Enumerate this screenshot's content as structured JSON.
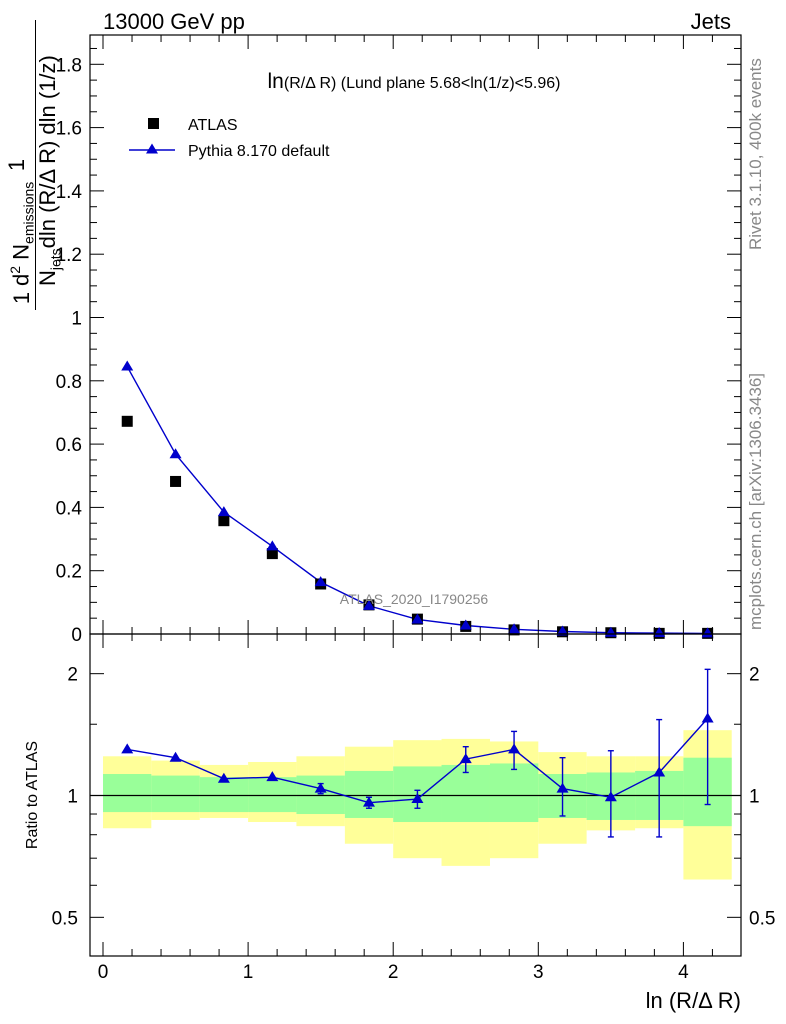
{
  "header": {
    "left": "13000 GeV pp",
    "right": "Jets"
  },
  "side": {
    "rivet": "Rivet 3.1.10,  400k events",
    "mcplots": "mcplots.cern.ch [arXiv:1306.3436]"
  },
  "watermark": "ATLAS_2020_I1790256",
  "colors": {
    "data": "#000000",
    "mc": "#0000cc",
    "band_inner": "#99ff99",
    "band_outer": "#ffff99"
  },
  "chart_data": [
    {
      "type": "scatter",
      "title": "ln(R/Δ R) (Lund plane 5.68<ln(1/z)<5.96)",
      "title_main": "ln",
      "title_rest": "(R/Δ R) (Lund plane 5.68<ln(1/z)<5.96)",
      "ylabel": {
        "frac_one": "1",
        "den_N": "N",
        "den_sub": "jets",
        "den_rest": "dln (R/Δ R) dln (1/z)",
        "num_d": "d",
        "num_sup": "2",
        "num_N": " N",
        "num_sub": "emissions"
      },
      "xlim": [
        -0.1,
        4.42
      ],
      "ylim": [
        0,
        1.9
      ],
      "yticks": [
        0,
        0.2,
        0.4,
        0.6,
        0.8,
        1,
        1.2,
        1.4,
        1.6,
        1.8
      ],
      "ytick_labels": [
        "0",
        "0.2",
        "0.4",
        "0.6",
        "0.8",
        "1",
        "1.2",
        "1.4",
        "1.6",
        "1.8"
      ],
      "legend": [
        {
          "label": "ATLAS",
          "marker": "square"
        },
        {
          "label": "Pythia 8.170 default",
          "marker": "triangle"
        }
      ],
      "x": [
        0.167,
        0.5,
        0.833,
        1.167,
        1.5,
        1.833,
        2.167,
        2.5,
        2.833,
        3.167,
        3.5,
        3.833,
        4.167
      ],
      "series": [
        {
          "name": "ATLAS",
          "values": [
            0.672,
            0.482,
            0.358,
            0.254,
            0.158,
            0.092,
            0.047,
            0.024,
            0.013,
            0.007,
            0.004,
            0.002,
            0.002
          ]
        },
        {
          "name": "Pythia 8.170 default",
          "values": [
            0.845,
            0.568,
            0.385,
            0.277,
            0.164,
            0.089,
            0.046,
            0.027,
            0.015,
            0.008,
            0.004,
            0.003,
            0.002
          ]
        }
      ]
    },
    {
      "type": "line",
      "ylabel": "Ratio to ATLAS",
      "xlabel": "ln (R/Δ R)",
      "xlim": [
        -0.1,
        4.42
      ],
      "ylim": [
        0.4,
        2.35
      ],
      "log_y": true,
      "xticks": [
        0,
        1,
        2,
        3,
        4
      ],
      "xtick_labels": [
        "0",
        "1",
        "2",
        "3",
        "4"
      ],
      "yticks": [
        0.5,
        1,
        2
      ],
      "ytick_labels": [
        "0.5",
        "1",
        "2"
      ],
      "bins": [
        0,
        0.333,
        0.667,
        1.0,
        1.333,
        1.667,
        2.0,
        2.333,
        2.667,
        3.0,
        3.333,
        3.667,
        4.0,
        4.333
      ],
      "band_inner": [
        [
          0.91,
          1.13
        ],
        [
          0.91,
          1.12
        ],
        [
          0.91,
          1.11
        ],
        [
          0.91,
          1.11
        ],
        [
          0.9,
          1.12
        ],
        [
          0.88,
          1.15
        ],
        [
          0.86,
          1.18
        ],
        [
          0.86,
          1.19
        ],
        [
          0.86,
          1.2
        ],
        [
          0.88,
          1.13
        ],
        [
          0.87,
          1.14
        ],
        [
          0.87,
          1.15
        ],
        [
          0.84,
          1.24
        ]
      ],
      "band_outer": [
        [
          0.83,
          1.25
        ],
        [
          0.87,
          1.22
        ],
        [
          0.88,
          1.19
        ],
        [
          0.86,
          1.21
        ],
        [
          0.84,
          1.25
        ],
        [
          0.76,
          1.32
        ],
        [
          0.7,
          1.37
        ],
        [
          0.67,
          1.38
        ],
        [
          0.7,
          1.36
        ],
        [
          0.76,
          1.28
        ],
        [
          0.82,
          1.25
        ],
        [
          0.83,
          1.25
        ],
        [
          0.62,
          1.45
        ]
      ],
      "x": [
        0.167,
        0.5,
        0.833,
        1.167,
        1.5,
        1.833,
        2.167,
        2.5,
        2.833,
        3.167,
        3.5,
        3.833,
        4.167
      ],
      "series": [
        {
          "name": "Pythia 8.170 default",
          "values": [
            1.3,
            1.24,
            1.1,
            1.11,
            1.04,
            0.96,
            0.98,
            1.23,
            1.3,
            1.04,
            0.99,
            1.14,
            1.55
          ],
          "err_low": [
            0.01,
            0.01,
            0.01,
            0.01,
            0.03,
            0.03,
            0.05,
            0.09,
            0.14,
            0.15,
            0.2,
            0.35,
            0.6
          ],
          "err_high": [
            0.01,
            0.01,
            0.01,
            0.01,
            0.03,
            0.03,
            0.05,
            0.09,
            0.14,
            0.2,
            0.3,
            0.4,
            0.5
          ]
        },
        {
          "name": "ATLAS",
          "values": [
            1,
            1,
            1,
            1,
            1,
            1,
            1,
            1,
            1,
            1,
            1,
            1,
            1
          ]
        }
      ]
    }
  ]
}
